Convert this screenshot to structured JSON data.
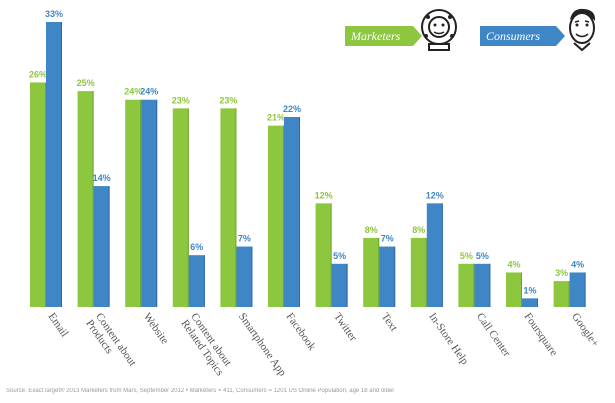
{
  "legend": {
    "marketers_label": "Marketers",
    "consumers_label": "Consumers"
  },
  "source": "Source: ExactTarget® 2013 Marketers from Mars, September 2012 • Marketers = 411, Consumers = 1201 US Online Population, age 18 and older",
  "colors": {
    "marketers": "#8dc63f",
    "consumers": "#3f86c7",
    "marketers_dark": "#6fa22e",
    "consumers_dark": "#2f6aa3"
  },
  "chart_data": {
    "type": "bar",
    "categories": [
      "Email",
      "Content about Products",
      "Website",
      "Content about Related Topics",
      "Smartphone App",
      "Facebook",
      "Twitter",
      "Text",
      "In-Store Help",
      "Call Center",
      "Foursquare",
      "Google+"
    ],
    "category_lines": [
      [
        "Email"
      ],
      [
        "Content about",
        "Products"
      ],
      [
        "Website"
      ],
      [
        "Content about",
        "Related Topics"
      ],
      [
        "Smartphone App"
      ],
      [
        "Facebook"
      ],
      [
        "Twitter"
      ],
      [
        "Text"
      ],
      [
        "In-Store Help"
      ],
      [
        "Call Center"
      ],
      [
        "Foursquare"
      ],
      [
        "Google+"
      ]
    ],
    "series": [
      {
        "name": "Marketers",
        "values": [
          26,
          25,
          24,
          23,
          23,
          21,
          12,
          8,
          8,
          5,
          4,
          3
        ]
      },
      {
        "name": "Consumers",
        "values": [
          33,
          14,
          24,
          6,
          7,
          22,
          5,
          7,
          12,
          5,
          1,
          4
        ]
      }
    ],
    "value_suffix": "%",
    "ylim": [
      0,
      33
    ]
  }
}
